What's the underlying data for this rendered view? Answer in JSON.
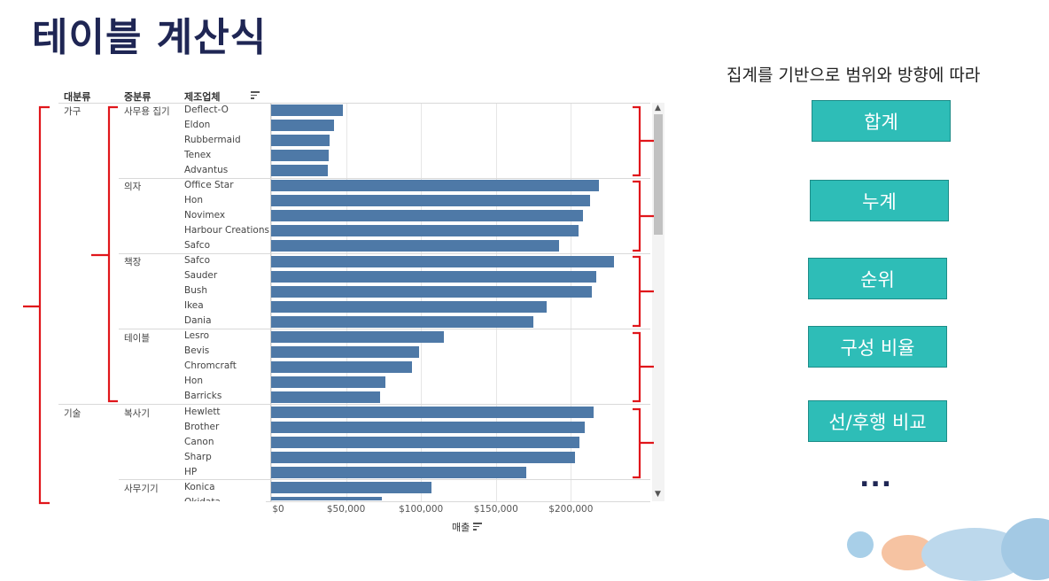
{
  "slide": {
    "title": "테이블 계산식",
    "subtitle": "집계를 기반으로 범위와 방향에 따라",
    "buttons": [
      "합계",
      "누계",
      "순위",
      "구성 비율",
      "선/후행 비교"
    ],
    "ellipsis": "..."
  },
  "viz": {
    "headers": {
      "category": "대분류",
      "subcategory": "중분류",
      "manufacturer": "제조업체"
    },
    "axis_title": "매출",
    "ticks": [
      "$0",
      "$50,000",
      "$100,000",
      "$150,000",
      "$200,000"
    ],
    "categories": [
      {
        "label": "가구"
      },
      {
        "label": "기술"
      }
    ],
    "subcategories": [
      {
        "label": "사무용 집기"
      },
      {
        "label": "의자"
      },
      {
        "label": "책장"
      },
      {
        "label": "테이블"
      },
      {
        "label": "복사기"
      },
      {
        "label": "사무기기"
      }
    ],
    "rows": [
      {
        "name": "Deflect-O"
      },
      {
        "name": "Eldon"
      },
      {
        "name": "Rubbermaid"
      },
      {
        "name": "Tenex"
      },
      {
        "name": "Advantus"
      },
      {
        "name": "Office Star"
      },
      {
        "name": "Hon"
      },
      {
        "name": "Novimex"
      },
      {
        "name": "Harbour Creations"
      },
      {
        "name": "Safco"
      },
      {
        "name": "Safco"
      },
      {
        "name": "Sauder"
      },
      {
        "name": "Bush"
      },
      {
        "name": "Ikea"
      },
      {
        "name": "Dania"
      },
      {
        "name": "Lesro"
      },
      {
        "name": "Bevis"
      },
      {
        "name": "Chromcraft"
      },
      {
        "name": "Hon"
      },
      {
        "name": "Barricks"
      },
      {
        "name": "Hewlett"
      },
      {
        "name": "Brother"
      },
      {
        "name": "Canon"
      },
      {
        "name": "Sharp"
      },
      {
        "name": "HP"
      },
      {
        "name": "Konica"
      },
      {
        "name": "Okidata"
      }
    ]
  },
  "chart_data": {
    "type": "bar",
    "orientation": "horizontal",
    "xlabel": "매출",
    "xlim": [
      0,
      240000
    ],
    "categories": [
      "Deflect-O",
      "Eldon",
      "Rubbermaid",
      "Tenex",
      "Advantus",
      "Office Star",
      "Hon",
      "Novimex",
      "Harbour Creations",
      "Safco",
      "Safco",
      "Sauder",
      "Bush",
      "Ikea",
      "Dania",
      "Lesro",
      "Bevis",
      "Chromcraft",
      "Hon",
      "Barricks",
      "Hewlett",
      "Brother",
      "Canon",
      "Sharp",
      "HP",
      "Konica",
      "Okidata"
    ],
    "values": [
      48000,
      42000,
      39000,
      38500,
      38000,
      219000,
      213000,
      208000,
      205000,
      192000,
      229000,
      217000,
      214000,
      184000,
      175000,
      115000,
      99000,
      94000,
      76000,
      73000,
      215000,
      209000,
      206000,
      203000,
      170000,
      107000,
      74000
    ],
    "bar_color": "#4e79a7",
    "grid": true
  },
  "colors": {
    "accent": "#2ebdb7",
    "title": "#1f2654",
    "bracket": "#e0161b",
    "bar": "#4e79a7"
  }
}
